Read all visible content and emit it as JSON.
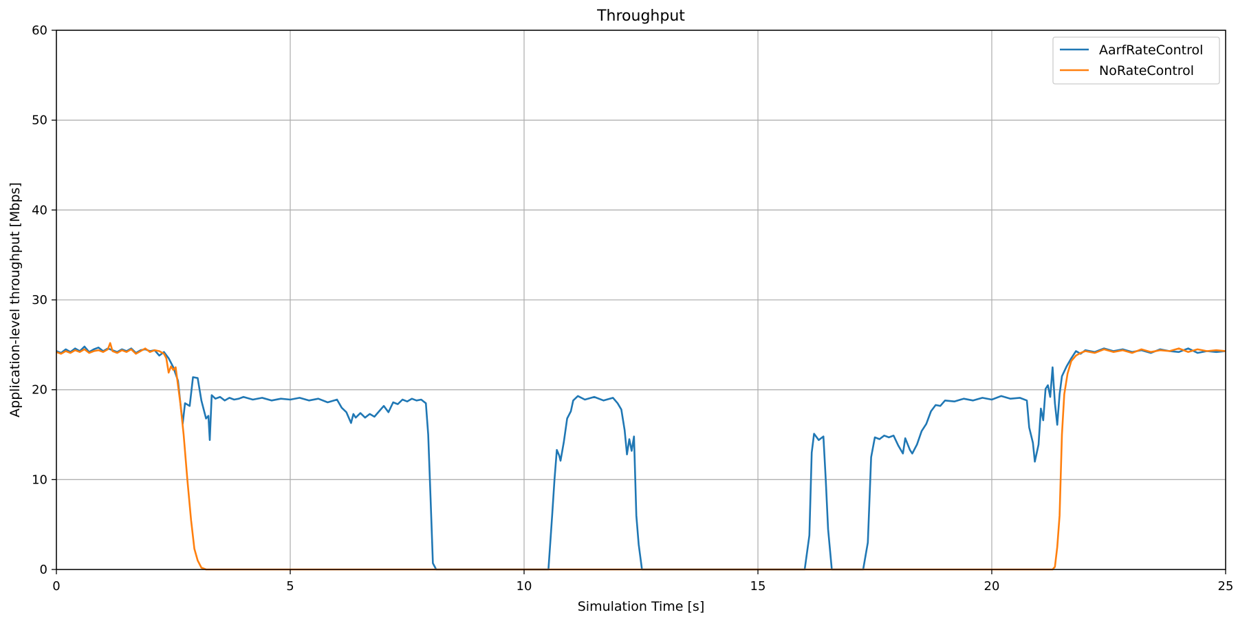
{
  "chart_data": {
    "type": "line",
    "title": "Throughput",
    "xlabel": "Simulation Time [s]",
    "ylabel": "Application-level throughput [Mbps]",
    "xlim": [
      0,
      25
    ],
    "ylim": [
      0,
      60
    ],
    "xticks": [
      0,
      5,
      10,
      15,
      20,
      25
    ],
    "xtick_labels": [
      "0",
      "5",
      "10",
      "15",
      "20",
      "25"
    ],
    "yticks": [
      0,
      10,
      20,
      30,
      40,
      50,
      60
    ],
    "ytick_labels": [
      "0",
      "10",
      "20",
      "30",
      "40",
      "50",
      "60"
    ],
    "grid": true,
    "legend_position": "top-right",
    "series": [
      {
        "name": "AarfRateControl",
        "color": "#1f77b4",
        "points": [
          [
            0,
            24.3
          ],
          [
            0.1,
            24.1
          ],
          [
            0.2,
            24.5
          ],
          [
            0.3,
            24.2
          ],
          [
            0.4,
            24.6
          ],
          [
            0.5,
            24.3
          ],
          [
            0.6,
            24.8
          ],
          [
            0.7,
            24.2
          ],
          [
            0.8,
            24.5
          ],
          [
            0.9,
            24.7
          ],
          [
            1.0,
            24.3
          ],
          [
            1.1,
            24.6
          ],
          [
            1.2,
            24.4
          ],
          [
            1.3,
            24.2
          ],
          [
            1.4,
            24.5
          ],
          [
            1.5,
            24.3
          ],
          [
            1.6,
            24.6
          ],
          [
            1.7,
            24.1
          ],
          [
            1.8,
            24.4
          ],
          [
            1.9,
            24.5
          ],
          [
            2.0,
            24.3
          ],
          [
            2.1,
            24.4
          ],
          [
            2.2,
            23.8
          ],
          [
            2.3,
            24.2
          ],
          [
            2.4,
            23.5
          ],
          [
            2.5,
            22.5
          ],
          [
            2.6,
            21.0
          ],
          [
            2.7,
            16.2
          ],
          [
            2.75,
            18.5
          ],
          [
            2.85,
            18.2
          ],
          [
            2.92,
            21.4
          ],
          [
            3.02,
            21.3
          ],
          [
            3.1,
            18.8
          ],
          [
            3.2,
            16.8
          ],
          [
            3.25,
            17.1
          ],
          [
            3.28,
            14.4
          ],
          [
            3.32,
            19.4
          ],
          [
            3.4,
            19.0
          ],
          [
            3.5,
            19.2
          ],
          [
            3.6,
            18.8
          ],
          [
            3.7,
            19.1
          ],
          [
            3.8,
            18.9
          ],
          [
            3.9,
            19.0
          ],
          [
            4.0,
            19.2
          ],
          [
            4.2,
            18.9
          ],
          [
            4.4,
            19.1
          ],
          [
            4.6,
            18.8
          ],
          [
            4.8,
            19.0
          ],
          [
            5.0,
            18.9
          ],
          [
            5.2,
            19.1
          ],
          [
            5.4,
            18.8
          ],
          [
            5.6,
            19.0
          ],
          [
            5.8,
            18.6
          ],
          [
            6.0,
            18.9
          ],
          [
            6.1,
            18.0
          ],
          [
            6.2,
            17.5
          ],
          [
            6.3,
            16.3
          ],
          [
            6.35,
            17.3
          ],
          [
            6.4,
            16.9
          ],
          [
            6.5,
            17.4
          ],
          [
            6.6,
            16.9
          ],
          [
            6.7,
            17.3
          ],
          [
            6.8,
            17.0
          ],
          [
            6.9,
            17.6
          ],
          [
            7.0,
            18.2
          ],
          [
            7.1,
            17.5
          ],
          [
            7.2,
            18.6
          ],
          [
            7.3,
            18.4
          ],
          [
            7.4,
            18.9
          ],
          [
            7.5,
            18.7
          ],
          [
            7.6,
            19.0
          ],
          [
            7.7,
            18.8
          ],
          [
            7.8,
            18.9
          ],
          [
            7.9,
            18.5
          ],
          [
            7.95,
            15.0
          ],
          [
            8.0,
            8.0
          ],
          [
            8.05,
            0.7
          ],
          [
            8.12,
            0.0
          ],
          [
            10.52,
            0.0
          ],
          [
            10.6,
            6.0
          ],
          [
            10.65,
            10.0
          ],
          [
            10.7,
            13.3
          ],
          [
            10.75,
            12.7
          ],
          [
            10.78,
            12.1
          ],
          [
            10.85,
            14.2
          ],
          [
            10.92,
            16.8
          ],
          [
            11.0,
            17.6
          ],
          [
            11.05,
            18.8
          ],
          [
            11.15,
            19.3
          ],
          [
            11.3,
            18.9
          ],
          [
            11.5,
            19.2
          ],
          [
            11.7,
            18.8
          ],
          [
            11.9,
            19.1
          ],
          [
            12.0,
            18.5
          ],
          [
            12.08,
            17.8
          ],
          [
            12.15,
            15.5
          ],
          [
            12.2,
            12.8
          ],
          [
            12.25,
            14.5
          ],
          [
            12.3,
            13.2
          ],
          [
            12.35,
            14.8
          ],
          [
            12.4,
            6.0
          ],
          [
            12.45,
            2.8
          ],
          [
            12.52,
            0.0
          ],
          [
            16.0,
            0.0
          ],
          [
            16.1,
            3.8
          ],
          [
            16.15,
            13.0
          ],
          [
            16.2,
            15.1
          ],
          [
            16.3,
            14.4
          ],
          [
            16.4,
            14.8
          ],
          [
            16.45,
            10.0
          ],
          [
            16.5,
            4.5
          ],
          [
            16.58,
            0.0
          ],
          [
            17.25,
            0.0
          ],
          [
            17.35,
            3.0
          ],
          [
            17.42,
            12.5
          ],
          [
            17.5,
            14.7
          ],
          [
            17.6,
            14.5
          ],
          [
            17.7,
            14.9
          ],
          [
            17.8,
            14.7
          ],
          [
            17.9,
            14.9
          ],
          [
            18.0,
            13.8
          ],
          [
            18.1,
            12.9
          ],
          [
            18.15,
            14.6
          ],
          [
            18.25,
            13.3
          ],
          [
            18.3,
            12.9
          ],
          [
            18.4,
            13.9
          ],
          [
            18.5,
            15.4
          ],
          [
            18.6,
            16.2
          ],
          [
            18.7,
            17.6
          ],
          [
            18.8,
            18.3
          ],
          [
            18.9,
            18.2
          ],
          [
            19.0,
            18.8
          ],
          [
            19.2,
            18.7
          ],
          [
            19.4,
            19.0
          ],
          [
            19.6,
            18.8
          ],
          [
            19.8,
            19.1
          ],
          [
            20.0,
            18.9
          ],
          [
            20.2,
            19.3
          ],
          [
            20.4,
            19.0
          ],
          [
            20.6,
            19.1
          ],
          [
            20.75,
            18.8
          ],
          [
            20.8,
            15.8
          ],
          [
            20.88,
            14.1
          ],
          [
            20.92,
            12.0
          ],
          [
            21.0,
            13.9
          ],
          [
            21.05,
            17.9
          ],
          [
            21.1,
            16.6
          ],
          [
            21.15,
            20.1
          ],
          [
            21.2,
            20.5
          ],
          [
            21.25,
            19.2
          ],
          [
            21.3,
            22.5
          ],
          [
            21.35,
            18.5
          ],
          [
            21.4,
            16.1
          ],
          [
            21.45,
            19.5
          ],
          [
            21.5,
            21.5
          ],
          [
            21.6,
            22.6
          ],
          [
            21.7,
            23.5
          ],
          [
            21.8,
            24.3
          ],
          [
            21.9,
            24.0
          ],
          [
            22.0,
            24.4
          ],
          [
            22.2,
            24.2
          ],
          [
            22.4,
            24.6
          ],
          [
            22.6,
            24.3
          ],
          [
            22.8,
            24.5
          ],
          [
            23.0,
            24.2
          ],
          [
            23.2,
            24.4
          ],
          [
            23.4,
            24.1
          ],
          [
            23.6,
            24.5
          ],
          [
            23.8,
            24.3
          ],
          [
            24.0,
            24.2
          ],
          [
            24.2,
            24.6
          ],
          [
            24.4,
            24.1
          ],
          [
            24.6,
            24.3
          ],
          [
            24.8,
            24.2
          ],
          [
            25.0,
            24.3
          ]
        ]
      },
      {
        "name": "NoRateControl",
        "color": "#ff7f0e",
        "points": [
          [
            0,
            24.2
          ],
          [
            0.1,
            24.0
          ],
          [
            0.2,
            24.3
          ],
          [
            0.3,
            24.1
          ],
          [
            0.4,
            24.4
          ],
          [
            0.5,
            24.2
          ],
          [
            0.6,
            24.5
          ],
          [
            0.7,
            24.1
          ],
          [
            0.8,
            24.3
          ],
          [
            0.9,
            24.4
          ],
          [
            1.0,
            24.2
          ],
          [
            1.1,
            24.5
          ],
          [
            1.15,
            25.2
          ],
          [
            1.2,
            24.3
          ],
          [
            1.3,
            24.1
          ],
          [
            1.4,
            24.4
          ],
          [
            1.5,
            24.2
          ],
          [
            1.6,
            24.5
          ],
          [
            1.7,
            24.0
          ],
          [
            1.8,
            24.3
          ],
          [
            1.9,
            24.6
          ],
          [
            2.0,
            24.2
          ],
          [
            2.1,
            24.4
          ],
          [
            2.2,
            24.3
          ],
          [
            2.3,
            24.0
          ],
          [
            2.35,
            23.5
          ],
          [
            2.4,
            21.9
          ],
          [
            2.45,
            22.6
          ],
          [
            2.5,
            22.2
          ],
          [
            2.55,
            22.5
          ],
          [
            2.6,
            20.5
          ],
          [
            2.65,
            18.5
          ],
          [
            2.72,
            15.0
          ],
          [
            2.8,
            10.0
          ],
          [
            2.88,
            5.5
          ],
          [
            2.95,
            2.3
          ],
          [
            3.02,
            1.0
          ],
          [
            3.1,
            0.2
          ],
          [
            3.2,
            0.0
          ],
          [
            21.3,
            0.0
          ],
          [
            21.35,
            0.3
          ],
          [
            21.4,
            2.5
          ],
          [
            21.45,
            6.0
          ],
          [
            21.5,
            15.0
          ],
          [
            21.55,
            19.5
          ],
          [
            21.62,
            21.8
          ],
          [
            21.7,
            23.2
          ],
          [
            21.8,
            23.8
          ],
          [
            21.9,
            24.1
          ],
          [
            22.0,
            24.3
          ],
          [
            22.2,
            24.1
          ],
          [
            22.4,
            24.5
          ],
          [
            22.6,
            24.2
          ],
          [
            22.8,
            24.4
          ],
          [
            23.0,
            24.1
          ],
          [
            23.2,
            24.5
          ],
          [
            23.4,
            24.2
          ],
          [
            23.6,
            24.4
          ],
          [
            23.8,
            24.3
          ],
          [
            24.0,
            24.6
          ],
          [
            24.2,
            24.2
          ],
          [
            24.4,
            24.5
          ],
          [
            24.6,
            24.3
          ],
          [
            24.8,
            24.4
          ],
          [
            25.0,
            24.3
          ]
        ]
      }
    ]
  }
}
